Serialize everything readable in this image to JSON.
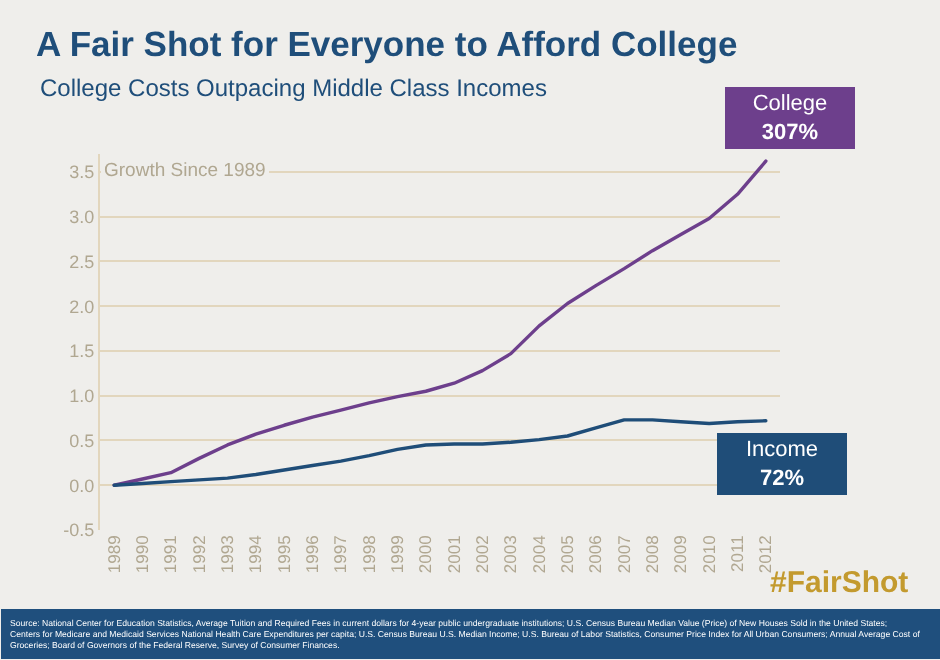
{
  "chart_data": {
    "type": "line",
    "title": "A Fair Shot for Everyone to Afford College",
    "subtitle": "College Costs Outpacing Middle Class Incomes",
    "ylabel": "Growth Since 1989",
    "categories": [
      "1989",
      "1990",
      "1991",
      "1992",
      "1993",
      "1994",
      "1995",
      "1996",
      "1997",
      "1998",
      "1999",
      "2000",
      "2001",
      "2002",
      "2003",
      "2004",
      "2005",
      "2006",
      "2007",
      "2008",
      "2009",
      "2010",
      "2011",
      "2012"
    ],
    "series": [
      {
        "name": "College",
        "color": "#6d3f8c",
        "values": [
          0,
          0.07,
          0.14,
          0.3,
          0.45,
          0.57,
          0.67,
          0.76,
          0.84,
          0.92,
          0.99,
          1.05,
          1.14,
          1.28,
          1.47,
          1.78,
          2.03,
          2.23,
          2.42,
          2.62,
          2.8,
          2.98,
          3.25,
          3.62
        ]
      },
      {
        "name": "Income",
        "color": "#1f4d78",
        "values": [
          0,
          0.02,
          0.04,
          0.06,
          0.08,
          0.12,
          0.17,
          0.22,
          0.27,
          0.33,
          0.4,
          0.45,
          0.46,
          0.46,
          0.48,
          0.51,
          0.55,
          0.64,
          0.73,
          0.73,
          0.71,
          0.69,
          0.71,
          0.72
        ]
      }
    ],
    "ylim": [
      -0.5,
      3.7
    ],
    "yticks": [
      -0.5,
      {
        "value": 0,
        "label": "0.0"
      },
      0.5,
      {
        "value": 1,
        "label": "1.0"
      },
      1.5,
      {
        "value": 2,
        "label": "2.0"
      },
      2.5,
      {
        "value": 3,
        "label": "3.0"
      },
      3.5
    ],
    "grid": "y",
    "legend": false,
    "marker": "none",
    "line_style": "solid",
    "annotations": [
      "307%",
      "72%",
      "#FairShot",
      "Source: National Center for Education Statistics, Average Tuition and Required Fees in current dollars for 4-year public undergraduate institutions; U.S. Census Bureau Median Value (Price) of New Houses Sold in the United States; Centers for Medicare and Medicaid Services National Health Care Expenditures per capita; U.S. Census Bureau U.S. Median Income; U.S. Bureau of Labor Statistics, Consumer Price Index for All Urban Consumers; Annual Average Cost of Groceries; Board of Governors of the Federal Reserve, Survey of Consumer Finances."
    ]
  }
}
